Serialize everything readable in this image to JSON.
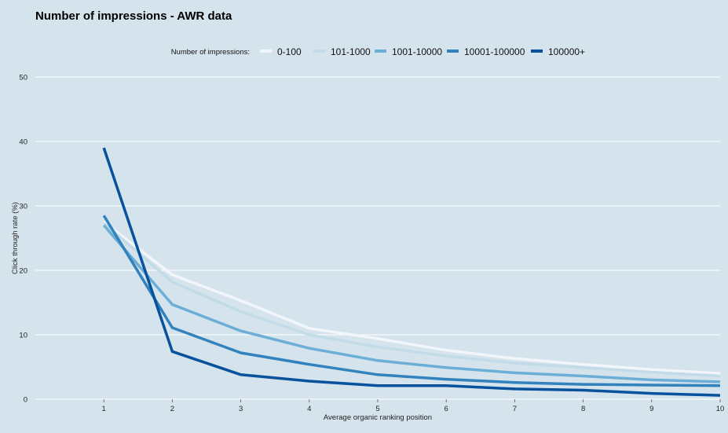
{
  "chart_data": {
    "type": "line",
    "title": "Number of impressions - AWR data",
    "xlabel": "Average organic ranking position",
    "ylabel": "Click through rate (%)",
    "x": [
      1,
      2,
      3,
      4,
      5,
      6,
      7,
      8,
      9,
      10
    ],
    "xlim": [
      0,
      10
    ],
    "ylim": [
      0,
      50
    ],
    "yticks": [
      0,
      10,
      20,
      30,
      40,
      50
    ],
    "xticks": [
      1,
      2,
      3,
      4,
      5,
      6,
      7,
      8,
      9,
      10
    ],
    "grid": "horizontal",
    "legend_title": "Number of impressions:",
    "legend_position": "top",
    "series": [
      {
        "name": "0-100",
        "color": "#f2f6fa",
        "values": [
          27.5,
          19.3,
          15.3,
          11.0,
          9.4,
          7.6,
          6.3,
          5.4,
          4.6,
          4.0
        ]
      },
      {
        "name": "101-1000",
        "color": "#c2dbe8",
        "values": [
          27.3,
          18.2,
          13.6,
          10.0,
          8.1,
          6.7,
          5.6,
          4.9,
          4.2,
          3.6
        ]
      },
      {
        "name": "1001-10000",
        "color": "#6baed6",
        "values": [
          27.0,
          14.7,
          10.6,
          7.9,
          6.0,
          4.9,
          4.1,
          3.6,
          3.0,
          2.7
        ]
      },
      {
        "name": "10001-100000",
        "color": "#3182bd",
        "values": [
          28.5,
          11.1,
          7.2,
          5.4,
          3.8,
          3.1,
          2.6,
          2.3,
          2.2,
          2.1
        ]
      },
      {
        "name": "100000+",
        "color": "#08519c",
        "values": [
          39.0,
          7.4,
          3.8,
          2.8,
          2.1,
          2.1,
          1.6,
          1.4,
          0.9,
          0.6
        ]
      }
    ]
  }
}
